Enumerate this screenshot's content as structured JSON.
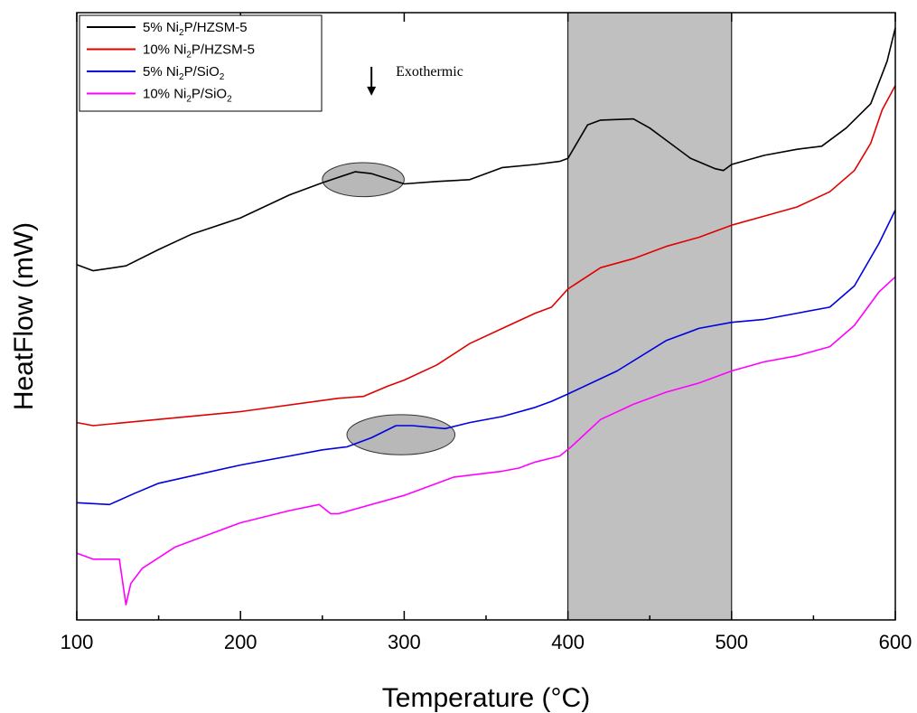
{
  "chart_data": {
    "type": "line",
    "xlabel": "Temperature (°C)",
    "ylabel": "HeatFlow (mW)",
    "xlim": [
      100,
      600
    ],
    "ylim": [
      0,
      100
    ],
    "x_ticks": [
      100,
      200,
      300,
      400,
      500,
      600
    ],
    "y_tick_labels": "none",
    "grid": false,
    "legend_position": "top-left",
    "annotation": {
      "text": "Exothermic",
      "arrow": "down",
      "x": 280,
      "y": 89
    },
    "shaded_region": {
      "x_from": 400,
      "x_to": 500,
      "color": "#c0c0c0"
    },
    "highlight_ellipses": [
      {
        "cx": 275,
        "cy": 72.5,
        "rx": 25,
        "ry": 2.8,
        "color": "#b8b8b8"
      },
      {
        "cx": 298,
        "cy": 30.5,
        "rx": 33,
        "ry": 3.3,
        "color": "#b8b8b8"
      }
    ],
    "series": [
      {
        "name_main": "5%   Ni",
        "name_sub": "2",
        "name_rest": "P/HZSM-5",
        "color": "#000000",
        "points": [
          [
            100,
            58.5
          ],
          [
            110,
            57.5
          ],
          [
            130,
            58.3
          ],
          [
            150,
            61
          ],
          [
            170,
            63.5
          ],
          [
            200,
            66.2
          ],
          [
            230,
            70
          ],
          [
            250,
            72
          ],
          [
            270,
            73.8
          ],
          [
            280,
            73.5
          ],
          [
            300,
            71.8
          ],
          [
            320,
            72.2
          ],
          [
            340,
            72.5
          ],
          [
            360,
            74.5
          ],
          [
            380,
            75
          ],
          [
            395,
            75.5
          ],
          [
            400,
            76
          ],
          [
            412,
            81.5
          ],
          [
            420,
            82.3
          ],
          [
            440,
            82.5
          ],
          [
            450,
            81
          ],
          [
            460,
            79
          ],
          [
            475,
            76
          ],
          [
            490,
            74.3
          ],
          [
            495,
            74
          ],
          [
            500,
            75
          ],
          [
            520,
            76.5
          ],
          [
            540,
            77.5
          ],
          [
            555,
            78
          ],
          [
            570,
            81
          ],
          [
            585,
            85
          ],
          [
            595,
            92
          ],
          [
            600,
            97.5
          ]
        ]
      },
      {
        "name_main": "10% Ni",
        "name_sub": "2",
        "name_rest": "P/HZSM-5",
        "color": "#e00000",
        "points": [
          [
            100,
            32.5
          ],
          [
            110,
            32
          ],
          [
            200,
            34.3
          ],
          [
            260,
            36.5
          ],
          [
            275,
            36.8
          ],
          [
            290,
            38.5
          ],
          [
            300,
            39.5
          ],
          [
            320,
            42
          ],
          [
            340,
            45.5
          ],
          [
            360,
            48
          ],
          [
            380,
            50.5
          ],
          [
            390,
            51.5
          ],
          [
            400,
            54.5
          ],
          [
            420,
            58
          ],
          [
            440,
            59.5
          ],
          [
            460,
            61.5
          ],
          [
            480,
            63
          ],
          [
            500,
            65
          ],
          [
            520,
            66.5
          ],
          [
            540,
            68
          ],
          [
            560,
            70.5
          ],
          [
            575,
            74
          ],
          [
            585,
            78.5
          ],
          [
            592,
            84
          ],
          [
            600,
            88
          ]
        ]
      },
      {
        "name_main": "5%   Ni",
        "name_sub": "2",
        "name_rest": "P/SiO",
        "name_sub2": "2",
        "color": "#0000e0",
        "points": [
          [
            100,
            19.3
          ],
          [
            120,
            19
          ],
          [
            135,
            20.8
          ],
          [
            150,
            22.5
          ],
          [
            200,
            25.5
          ],
          [
            230,
            27
          ],
          [
            250,
            28
          ],
          [
            265,
            28.5
          ],
          [
            280,
            30
          ],
          [
            295,
            32
          ],
          [
            305,
            32
          ],
          [
            325,
            31.5
          ],
          [
            340,
            32.5
          ],
          [
            360,
            33.5
          ],
          [
            380,
            35
          ],
          [
            390,
            36
          ],
          [
            400,
            37.2
          ],
          [
            430,
            41
          ],
          [
            460,
            46
          ],
          [
            480,
            48
          ],
          [
            500,
            49
          ],
          [
            520,
            49.5
          ],
          [
            540,
            50.5
          ],
          [
            560,
            51.5
          ],
          [
            575,
            55
          ],
          [
            590,
            62
          ],
          [
            600,
            67.5
          ]
        ]
      },
      {
        "name_main": "10% Ni",
        "name_sub": "2",
        "name_rest": "P/SiO",
        "name_sub2": "2",
        "color": "#ff00ff",
        "points": [
          [
            100,
            11
          ],
          [
            110,
            10
          ],
          [
            126,
            10
          ],
          [
            130,
            2.5
          ],
          [
            133,
            6
          ],
          [
            140,
            8.5
          ],
          [
            160,
            12
          ],
          [
            200,
            16
          ],
          [
            230,
            18
          ],
          [
            248,
            19
          ],
          [
            255,
            17.5
          ],
          [
            260,
            17.5
          ],
          [
            300,
            20.5
          ],
          [
            330,
            23.5
          ],
          [
            360,
            24.5
          ],
          [
            370,
            25
          ],
          [
            380,
            26
          ],
          [
            395,
            27
          ],
          [
            402,
            28.5
          ],
          [
            410,
            30.5
          ],
          [
            420,
            33
          ],
          [
            440,
            35.5
          ],
          [
            460,
            37.5
          ],
          [
            480,
            39
          ],
          [
            500,
            41
          ],
          [
            520,
            42.5
          ],
          [
            540,
            43.5
          ],
          [
            560,
            45
          ],
          [
            575,
            48.5
          ],
          [
            590,
            54
          ],
          [
            600,
            56.5
          ]
        ]
      }
    ]
  }
}
